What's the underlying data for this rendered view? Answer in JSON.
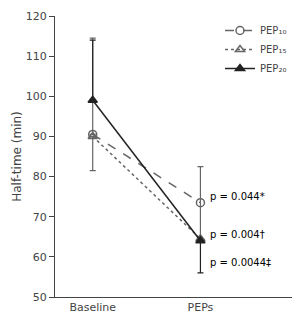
{
  "chart_data": {
    "type": "line",
    "categories": [
      "Baseline",
      "PEPs"
    ],
    "y_label": "Half-time (min)",
    "ylim": [
      50,
      120
    ],
    "yticks": [
      50,
      60,
      70,
      80,
      90,
      100,
      110,
      120
    ],
    "grid": false,
    "legend": "upper right",
    "series": [
      {
        "name": "PEP₁₀",
        "color": "#666666",
        "marker": "circle-open",
        "line_style": "dash",
        "values": [
          90.5,
          73.5
        ],
        "error_up": [
          24.0,
          9.0
        ],
        "error_down": [
          0.0,
          9.0
        ]
      },
      {
        "name": "PEP₁₅",
        "color": "#666666",
        "marker": "triangle-up-open",
        "line_style": "dot",
        "values": [
          90.0,
          64.5
        ],
        "error_up": [
          0.0,
          0.0
        ],
        "error_down": [
          8.5,
          0.0
        ]
      },
      {
        "name": "PEP₂₀",
        "color": "#222222",
        "marker": "triangle-up",
        "line_style": "solid",
        "values": [
          99.0,
          64.0
        ],
        "error_up": [
          15.0,
          0.0
        ],
        "error_down": [
          0.0,
          8.0
        ]
      }
    ],
    "annotations": [
      {
        "text": "p = 0.044*",
        "x": "PEPs",
        "y": 75
      },
      {
        "text": "p = 0.004†",
        "x": "PEPs",
        "y": 65.5
      },
      {
        "text": "p = 0.0044‡",
        "x": "PEPs",
        "y": 58.5
      }
    ]
  }
}
